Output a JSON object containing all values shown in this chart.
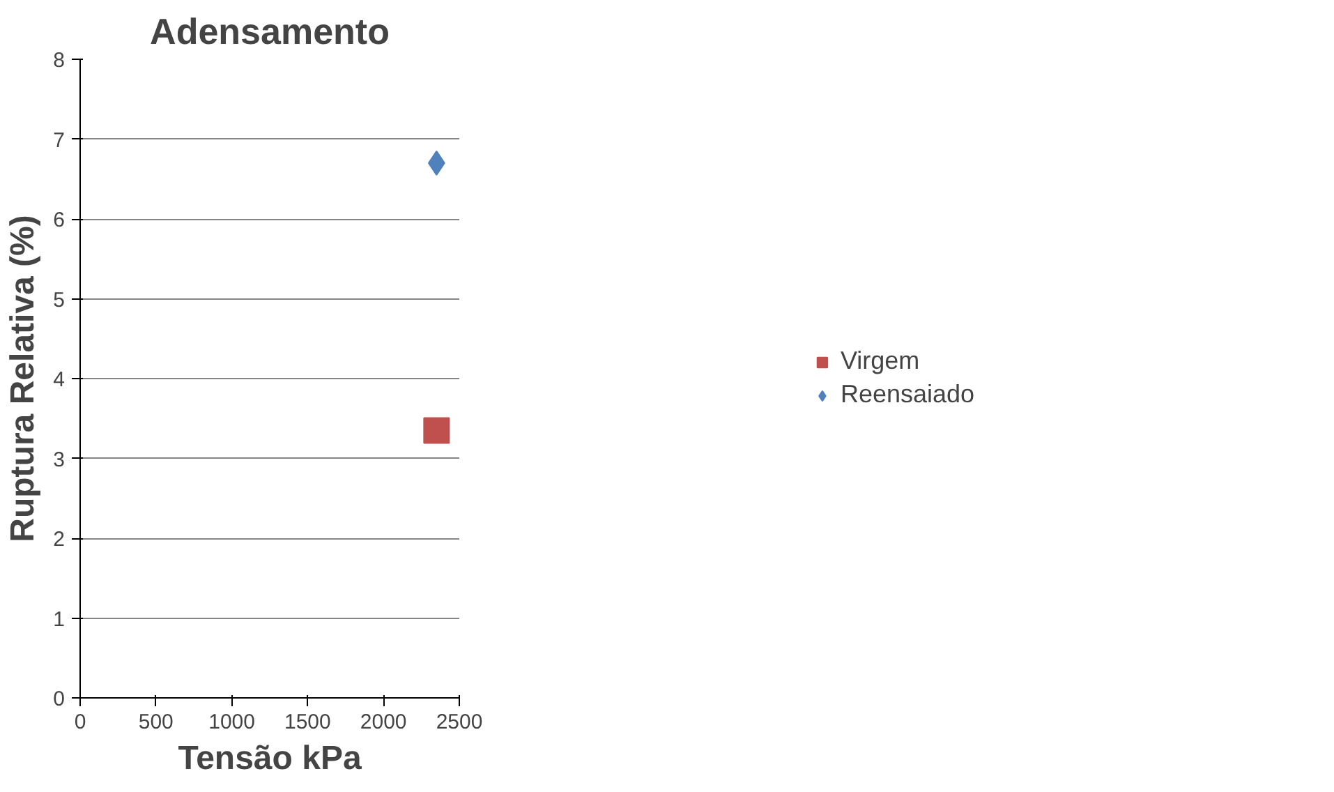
{
  "chart_data": {
    "type": "scatter",
    "title": "Adensamento",
    "xlabel": "Tensão kPa",
    "ylabel": "Ruptura Relativa (%)",
    "xlim": [
      0,
      2500
    ],
    "xticks": [
      0,
      500,
      1000,
      1500,
      2000,
      2500
    ],
    "ylim": [
      0,
      8
    ],
    "yticks": [
      0,
      1,
      2,
      3,
      4,
      5,
      6,
      7,
      8
    ],
    "grid": "y",
    "legend": "right",
    "series": [
      {
        "name": "Virgem",
        "color": "#c0504d",
        "marker": "square",
        "x": [
          2350
        ],
        "values": [
          3.35
        ]
      },
      {
        "name": "Reensaiado",
        "color": "#4f81bd",
        "marker": "diamond",
        "x": [
          2350
        ],
        "values": [
          6.7
        ]
      }
    ]
  }
}
